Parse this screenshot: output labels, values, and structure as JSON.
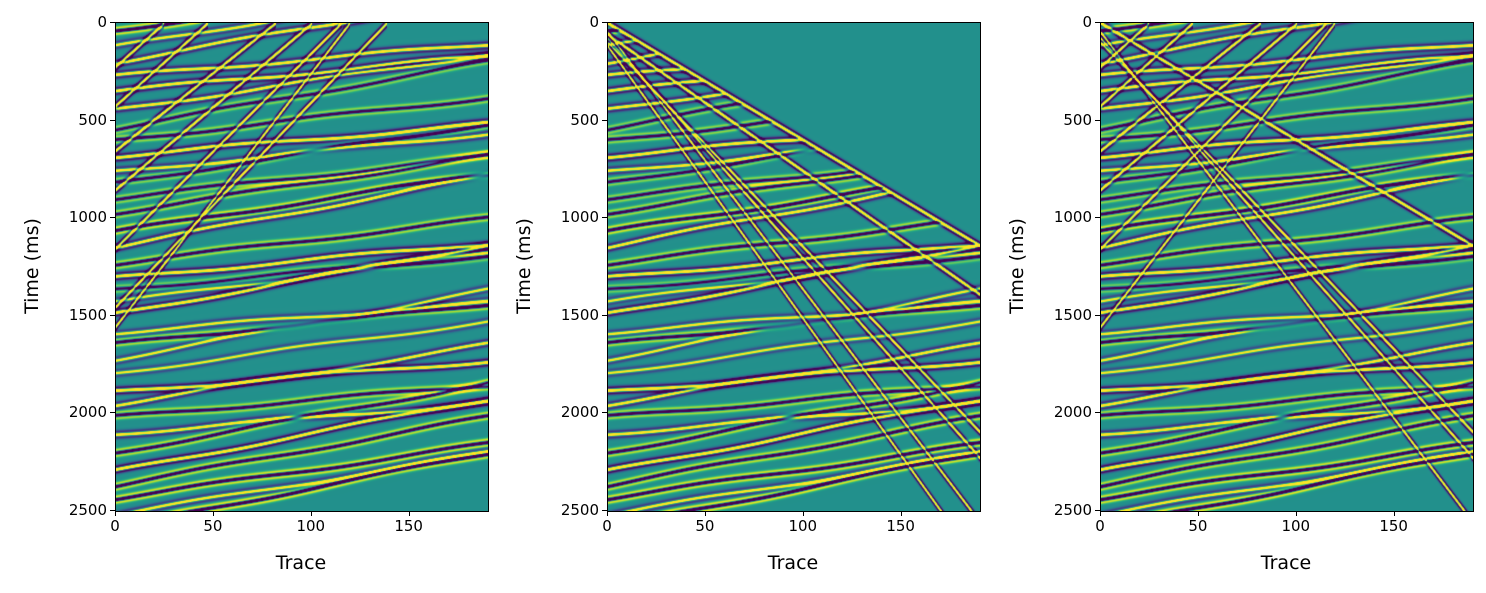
{
  "chart_data": [
    {
      "type": "heatmap",
      "title": "",
      "xlabel": "Trace",
      "ylabel": "Time (ms)",
      "xlim": [
        0,
        190
      ],
      "ylim": [
        2500,
        0
      ],
      "xticks": [
        "0",
        "50",
        "100",
        "150"
      ],
      "yticks": [
        "0",
        "500",
        "1000",
        "1500",
        "2000",
        "2500"
      ],
      "colormap": "viridis",
      "content": "reflections + upgoing linear events",
      "linear_events": [
        {
          "t0": 220,
          "slope": -9
        },
        {
          "t0": 420,
          "slope": -9
        },
        {
          "t0": 650,
          "slope": -8
        },
        {
          "t0": 850,
          "slope": -8.5
        },
        {
          "t0": 1150,
          "slope": -10
        },
        {
          "t0": 1550,
          "slope": -13
        },
        {
          "t0": 1450,
          "slope": -10.5
        }
      ],
      "reflections": true,
      "mute": false
    },
    {
      "type": "heatmap",
      "title": "",
      "xlabel": "Trace",
      "ylabel": "Time (ms)",
      "xlim": [
        0,
        190
      ],
      "ylim": [
        2500,
        0
      ],
      "xticks": [
        "0",
        "50",
        "100",
        "150"
      ],
      "yticks": [
        "0",
        "500",
        "1000",
        "1500",
        "2000",
        "2500"
      ],
      "colormap": "viridis",
      "content": "muted reflections + downgoing linear events",
      "linear_events": [
        {
          "t0": 0,
          "slope": 6
        },
        {
          "t0": 60,
          "slope": 7
        },
        {
          "t0": 100,
          "slope": 10.5
        },
        {
          "t0": 80,
          "slope": 11.3
        },
        {
          "t0": 50,
          "slope": 13.2
        },
        {
          "t0": 120,
          "slope": 14
        }
      ],
      "reflections": true,
      "mute": true,
      "mute_slope": 6
    },
    {
      "type": "heatmap",
      "title": "",
      "xlabel": "Trace",
      "ylabel": "Time (ms)",
      "xlim": [
        0,
        190
      ],
      "ylim": [
        2500,
        0
      ],
      "xticks": [
        "0",
        "50",
        "100",
        "150"
      ],
      "yticks": [
        "0",
        "500",
        "1000",
        "1500",
        "2000",
        "2500"
      ],
      "colormap": "viridis",
      "content": "sum of both",
      "linear_events": [
        {
          "t0": 220,
          "slope": -9
        },
        {
          "t0": 420,
          "slope": -9
        },
        {
          "t0": 650,
          "slope": -8
        },
        {
          "t0": 850,
          "slope": -8.5
        },
        {
          "t0": 1150,
          "slope": -10
        },
        {
          "t0": 1550,
          "slope": -13
        },
        {
          "t0": 0,
          "slope": 6
        },
        {
          "t0": 100,
          "slope": 10.5
        },
        {
          "t0": 80,
          "slope": 11.3
        },
        {
          "t0": 50,
          "slope": 13.2
        }
      ],
      "reflections": true,
      "mute": false
    }
  ],
  "colors": {
    "low": "#440154",
    "mid": "#21918c",
    "high": "#fde725"
  }
}
